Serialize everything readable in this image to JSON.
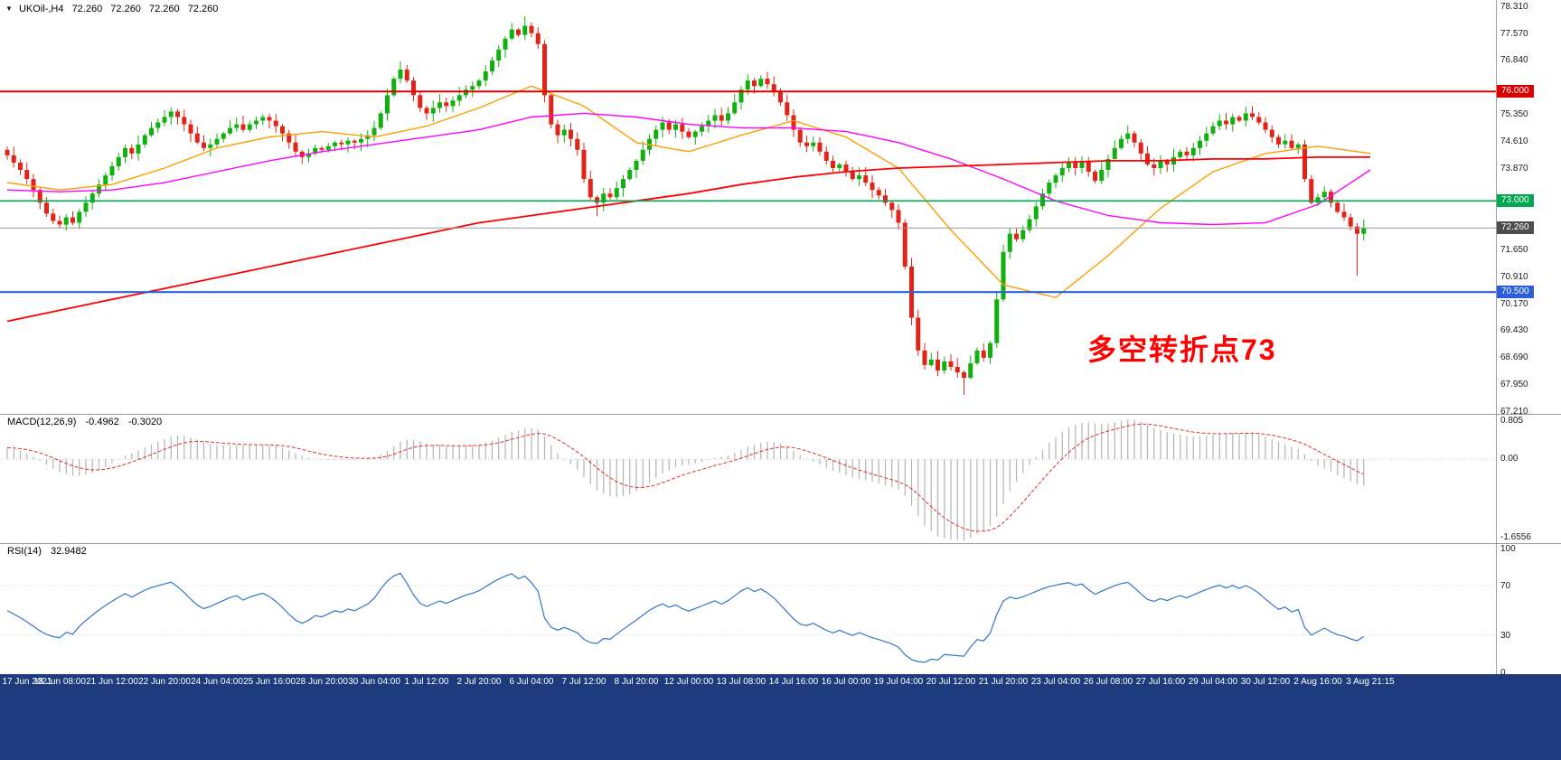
{
  "symbol_bar": {
    "dropdown_icon": "▼",
    "symbol_tf": "UKOil-,H4",
    "open": "72.260",
    "high": "72.260",
    "low": "72.260",
    "close": "72.260"
  },
  "annotation": {
    "text": "多空转折点73",
    "color": "#ff0000"
  },
  "macd_panel": {
    "label": "MACD(12,26,9)",
    "macd_value": "-0.4962",
    "signal_value": "-0.3020"
  },
  "rsi_panel": {
    "label": "RSI(14)",
    "value": "32.9482"
  },
  "levels": {
    "resistance": {
      "label": "76.000",
      "value": 76.0,
      "color": "#dd0000"
    },
    "pivot": {
      "label": "73.000",
      "value": 73.0,
      "color": "#00a84f"
    },
    "current": {
      "label": "72.260",
      "value": 72.26,
      "color": "#4d4d4d"
    },
    "support": {
      "label": "70.500",
      "value": 70.5,
      "color": "#2b5fd9"
    }
  },
  "chart_data": {
    "type": "candlestick",
    "symbol": "UKOil-",
    "timeframe": "H4",
    "title": "UKOil- H4 candlestick chart with MACD(12,26,9) and RSI(14)",
    "price_axis": {
      "min": 67.21,
      "max": 78.31,
      "labels": [
        {
          "text": "78.310",
          "value": 78.31
        },
        {
          "text": "77.570",
          "value": 77.57
        },
        {
          "text": "76.840",
          "value": 76.84
        },
        {
          "text": "75.350",
          "value": 75.35
        },
        {
          "text": "74.610",
          "value": 74.61
        },
        {
          "text": "73.870",
          "value": 73.87
        },
        {
          "text": "71.650",
          "value": 71.65
        },
        {
          "text": "70.910",
          "value": 70.91
        },
        {
          "text": "70.170",
          "value": 70.17
        },
        {
          "text": "69.430",
          "value": 69.43
        },
        {
          "text": "68.690",
          "value": 68.69
        },
        {
          "text": "67.950",
          "value": 67.95
        },
        {
          "text": "67.210",
          "value": 67.21
        }
      ]
    },
    "time_labels": [
      "17 Jun 2021",
      "18 Jun 08:00",
      "21 Jun 12:00",
      "22 Jun 20:00",
      "24 Jun 04:00",
      "25 Jun 16:00",
      "28 Jun 20:00",
      "30 Jun 04:00",
      "1 Jul 12:00",
      "2 Jul 20:00",
      "6 Jul 04:00",
      "7 Jul 12:00",
      "8 Jul 20:00",
      "12 Jul 00:00",
      "13 Jul 08:00",
      "14 Jul 16:00",
      "16 Jul 00:00",
      "19 Jul 04:00",
      "20 Jul 12:00",
      "21 Jul 20:00",
      "23 Jul 04:00",
      "26 Jul 08:00",
      "27 Jul 16:00",
      "29 Jul 04:00",
      "30 Jul 12:00",
      "2 Aug 16:00",
      "3 Aug 21:15"
    ],
    "first_open": 74.4,
    "closes": [
      74.25,
      74.05,
      73.85,
      73.6,
      73.3,
      72.95,
      72.65,
      72.45,
      72.35,
      72.55,
      72.4,
      72.7,
      72.95,
      73.2,
      73.45,
      73.7,
      73.95,
      74.2,
      74.45,
      74.3,
      74.55,
      74.8,
      75.0,
      75.15,
      75.3,
      75.45,
      75.3,
      75.1,
      74.85,
      74.6,
      74.45,
      74.55,
      74.7,
      74.85,
      75.0,
      75.1,
      74.95,
      75.1,
      75.2,
      75.3,
      75.2,
      75.05,
      74.85,
      74.6,
      74.35,
      74.2,
      74.3,
      74.45,
      74.4,
      74.5,
      74.6,
      74.55,
      74.65,
      74.6,
      74.7,
      74.8,
      75.0,
      75.4,
      75.9,
      76.35,
      76.6,
      76.3,
      75.9,
      75.55,
      75.4,
      75.55,
      75.7,
      75.6,
      75.75,
      75.9,
      76.05,
      76.15,
      76.3,
      76.55,
      76.85,
      77.15,
      77.45,
      77.7,
      77.55,
      77.8,
      77.6,
      77.3,
      75.9,
      75.1,
      74.8,
      74.95,
      74.7,
      74.4,
      73.6,
      73.1,
      72.95,
      73.2,
      73.1,
      73.35,
      73.6,
      73.85,
      74.1,
      74.4,
      74.7,
      74.95,
      75.15,
      74.95,
      75.1,
      74.9,
      74.75,
      74.9,
      75.05,
      75.2,
      75.35,
      75.2,
      75.4,
      75.7,
      76.05,
      76.3,
      76.15,
      76.35,
      76.2,
      76.0,
      75.7,
      75.35,
      74.95,
      74.6,
      74.5,
      74.6,
      74.35,
      74.1,
      73.9,
      74.0,
      73.8,
      73.6,
      73.7,
      73.5,
      73.3,
      73.15,
      72.95,
      72.75,
      72.4,
      71.2,
      69.8,
      68.9,
      68.5,
      68.65,
      68.35,
      68.6,
      68.45,
      68.3,
      68.15,
      68.55,
      68.9,
      68.7,
      69.1,
      70.3,
      71.6,
      72.1,
      71.95,
      72.2,
      72.5,
      72.85,
      73.2,
      73.5,
      73.7,
      73.9,
      74.05,
      73.9,
      74.1,
      73.8,
      73.55,
      73.85,
      74.15,
      74.45,
      74.7,
      74.85,
      74.6,
      74.3,
      74.0,
      73.9,
      74.1,
      74.0,
      74.2,
      74.35,
      74.25,
      74.45,
      74.65,
      74.85,
      75.05,
      75.2,
      75.1,
      75.3,
      75.2,
      75.4,
      75.3,
      75.15,
      74.95,
      74.75,
      74.55,
      74.65,
      74.45,
      74.55,
      73.6,
      72.95,
      73.1,
      73.25,
      72.95,
      72.7,
      72.55,
      72.3,
      72.1,
      72.26
    ],
    "wick_overrides": {
      "79": [
        78.06,
        null
      ],
      "90": [
        null,
        72.58
      ],
      "146": [
        null,
        67.68
      ],
      "206": [
        null,
        70.95
      ]
    },
    "colors": {
      "bull": "#10b010",
      "bear": "#e22418",
      "macd_hist": "#b4b4b4",
      "macd_signal": "#e03030",
      "rsi_line": "#3575c8"
    },
    "moving_averages": [
      {
        "name": "fast-ma-orange",
        "color": "#ff9d00",
        "width": 1.4,
        "bar_step": 8,
        "values": [
          73.5,
          73.3,
          73.45,
          73.9,
          74.45,
          74.75,
          74.9,
          74.75,
          75.05,
          75.55,
          76.15,
          75.6,
          74.6,
          74.35,
          74.8,
          75.2,
          74.75,
          73.9,
          72.2,
          70.7,
          70.35,
          71.5,
          72.8,
          73.8,
          74.3,
          74.5,
          74.3
        ]
      },
      {
        "name": "mid-ma-magenta",
        "color": "#ff00ff",
        "width": 1.4,
        "bar_step": 8,
        "values": [
          73.3,
          73.25,
          73.3,
          73.5,
          73.8,
          74.1,
          74.35,
          74.55,
          74.75,
          74.95,
          75.3,
          75.4,
          75.3,
          75.1,
          75.0,
          75.0,
          74.9,
          74.6,
          74.15,
          73.6,
          73.0,
          72.6,
          72.4,
          72.35,
          72.4,
          72.9,
          73.85
        ]
      },
      {
        "name": "slow-ma-red",
        "color": "#ff0000",
        "width": 1.8,
        "bar_step": 8,
        "values": [
          69.7,
          70.0,
          70.3,
          70.6,
          70.9,
          71.2,
          71.5,
          71.8,
          72.1,
          72.4,
          72.6,
          72.8,
          73.0,
          73.2,
          73.45,
          73.65,
          73.8,
          73.9,
          73.95,
          74.0,
          74.05,
          74.1,
          74.1,
          74.15,
          74.15,
          74.2,
          74.2
        ]
      }
    ],
    "hlines": [
      {
        "name": "resistance-line",
        "value": 76.0,
        "color": "#dd0000",
        "width": 2
      },
      {
        "name": "pivot-line",
        "value": 73.0,
        "color": "#00a84f",
        "width": 1.6
      },
      {
        "name": "support-line",
        "value": 70.5,
        "color": "#2b5fd9",
        "width": 2.2
      },
      {
        "name": "current-price-line",
        "value": 72.26,
        "color": "#9a9a9a",
        "width": 1
      }
    ],
    "macd": {
      "params": [
        12,
        26,
        9
      ],
      "axis_labels": [
        "0.805",
        "0.00",
        "-1.6556"
      ],
      "current_macd": -0.4962,
      "current_signal": -0.302
    },
    "rsi": {
      "period": 14,
      "axis_labels": [
        "100",
        "70",
        "30",
        "0"
      ],
      "levels": [
        30,
        70
      ],
      "current": 32.9482
    }
  }
}
